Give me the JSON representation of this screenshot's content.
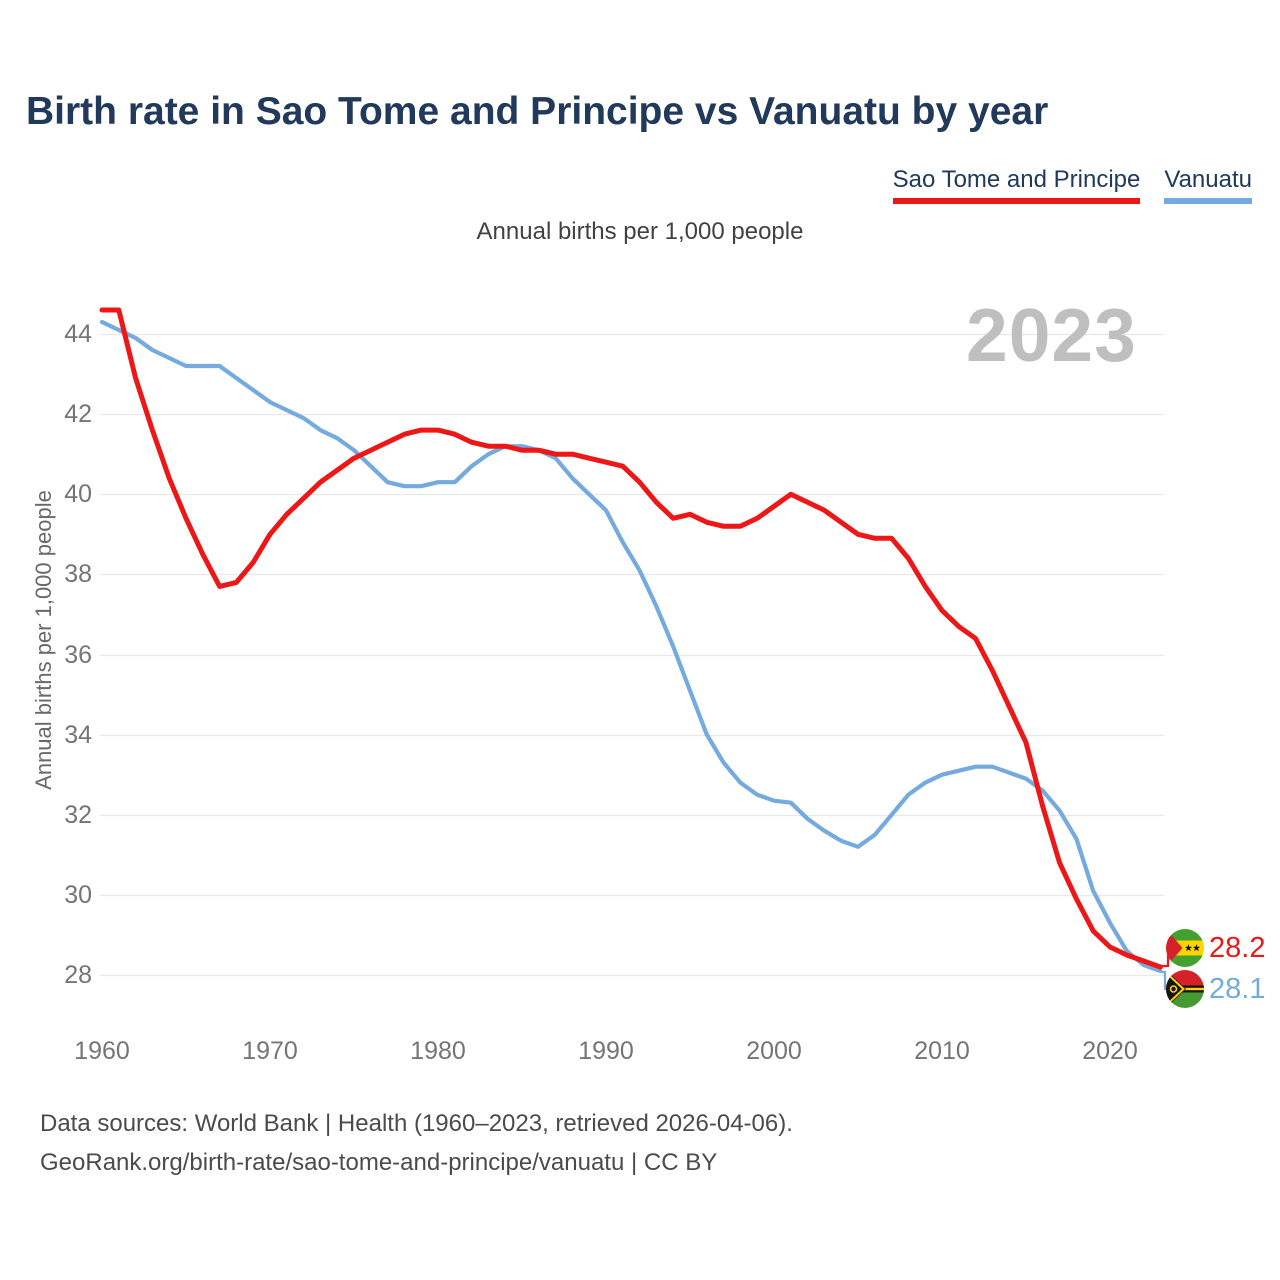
{
  "title": "Birth rate in Sao Tome and Principe vs Vanuatu by year",
  "subtitle": "Annual births per 1,000 people",
  "y_axis_label": "Annual births per 1,000 people",
  "watermark": "2023",
  "colors": {
    "sao_tome": "#ee1717",
    "vanuatu": "#74aadd",
    "title": "#21395b",
    "gridline": "#e8e8e8",
    "tick_label": "#757575",
    "watermark": "#bfbfbf"
  },
  "legend": [
    {
      "label": "Sao Tome and Principe",
      "color": "#ee1717"
    },
    {
      "label": "Vanuatu",
      "color": "#74aadd"
    }
  ],
  "end_labels": [
    {
      "flag": "sao-tome-and-principe",
      "value": "28.2",
      "color": "#ee1717"
    },
    {
      "flag": "vanuatu",
      "value": "28.1",
      "color": "#74aadd"
    }
  ],
  "footer": {
    "line1": "Data sources: World Bank | Health (1960–2023, retrieved 2026-04-06).",
    "line2": "GeoRank.org/birth-rate/sao-tome-and-principe/vanuatu | CC BY"
  },
  "chart_data": {
    "type": "line",
    "title": "Birth rate in Sao Tome and Principe vs Vanuatu by year",
    "subtitle": "Annual births per 1,000 people",
    "ylabel": "Annual births per 1,000 people",
    "xlabel": "",
    "grid": "horizontal",
    "legend_position": "top-right",
    "x_ticks": [
      1960,
      1970,
      1980,
      1990,
      2000,
      2010,
      2020
    ],
    "y_ticks": [
      28,
      30,
      32,
      34,
      36,
      38,
      40,
      42,
      44
    ],
    "xlim": [
      1960,
      2023
    ],
    "ylim": [
      27.5,
      45.2
    ],
    "years": [
      1960,
      1961,
      1962,
      1963,
      1964,
      1965,
      1966,
      1967,
      1968,
      1969,
      1970,
      1971,
      1972,
      1973,
      1974,
      1975,
      1976,
      1977,
      1978,
      1979,
      1980,
      1981,
      1982,
      1983,
      1984,
      1985,
      1986,
      1987,
      1988,
      1989,
      1990,
      1991,
      1992,
      1993,
      1994,
      1995,
      1996,
      1997,
      1998,
      1999,
      2000,
      2001,
      2002,
      2003,
      2004,
      2005,
      2006,
      2007,
      2008,
      2009,
      2010,
      2011,
      2012,
      2013,
      2014,
      2015,
      2016,
      2017,
      2018,
      2019,
      2020,
      2021,
      2022,
      2023
    ],
    "series": [
      {
        "name": "Sao Tome and Principe",
        "color": "#ee1717",
        "end_value": 28.2,
        "values": [
          44.6,
          44.6,
          42.9,
          41.6,
          40.4,
          39.4,
          38.5,
          37.7,
          37.8,
          38.3,
          39.0,
          39.5,
          39.9,
          40.3,
          40.6,
          40.9,
          41.1,
          41.3,
          41.5,
          41.6,
          41.6,
          41.5,
          41.3,
          41.2,
          41.2,
          41.1,
          41.1,
          41.0,
          41.0,
          40.9,
          40.8,
          40.7,
          40.3,
          39.8,
          39.4,
          39.5,
          39.3,
          39.2,
          39.2,
          39.4,
          39.7,
          40.0,
          39.8,
          39.6,
          39.3,
          39.0,
          38.9,
          38.9,
          38.4,
          37.7,
          37.1,
          36.7,
          36.4,
          35.6,
          34.7,
          33.8,
          32.2,
          30.8,
          29.9,
          29.1,
          28.7,
          28.5,
          28.35,
          28.2
        ]
      },
      {
        "name": "Vanuatu",
        "color": "#74aadd",
        "end_value": 28.1,
        "values": [
          44.3,
          44.1,
          43.9,
          43.6,
          43.4,
          43.2,
          43.2,
          43.2,
          42.9,
          42.6,
          42.3,
          42.1,
          41.9,
          41.6,
          41.4,
          41.1,
          40.7,
          40.3,
          40.2,
          40.2,
          40.3,
          40.3,
          40.7,
          41.0,
          41.2,
          41.2,
          41.1,
          40.9,
          40.4,
          40.0,
          39.6,
          38.8,
          38.1,
          37.2,
          36.2,
          35.1,
          34.0,
          33.3,
          32.8,
          32.5,
          32.35,
          32.3,
          31.9,
          31.6,
          31.35,
          31.2,
          31.5,
          32.0,
          32.5,
          32.8,
          33.0,
          33.1,
          33.2,
          33.2,
          33.05,
          32.9,
          32.6,
          32.1,
          31.4,
          30.1,
          29.3,
          28.6,
          28.25,
          28.1
        ]
      }
    ]
  }
}
